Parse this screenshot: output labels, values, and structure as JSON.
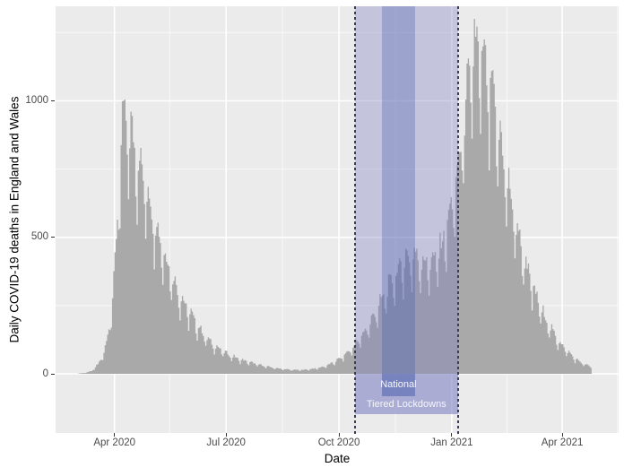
{
  "chart_data": {
    "type": "bar",
    "title": "",
    "xlabel": "Date",
    "ylabel": "Daily COVID-19 deaths in England and Wales",
    "bar_unit": "1 day",
    "legend": "none",
    "grid": "white major and minor gridlines on grey panel",
    "x_domain": [
      "2020-02-13",
      "2021-05-17"
    ],
    "ylim": [
      0,
      1346
    ],
    "x_ticks": [
      {
        "date": "2020-04-01",
        "label": "Apr 2020"
      },
      {
        "date": "2020-07-01",
        "label": "Jul 2020"
      },
      {
        "date": "2020-10-01",
        "label": "Oct 2020"
      },
      {
        "date": "2021-01-01",
        "label": "Jan 2021"
      },
      {
        "date": "2021-04-01",
        "label": "Apr 2021"
      }
    ],
    "x_minor_ticks": [
      "2020-05-16",
      "2020-08-16",
      "2020-11-16",
      "2021-02-15",
      "2021-05-16"
    ],
    "y_ticks": [
      {
        "value": 0,
        "label": "0"
      },
      {
        "value": 500,
        "label": "500"
      },
      {
        "value": 1000,
        "label": "1000"
      }
    ],
    "y_minor_ticks": [
      250,
      750,
      1250
    ],
    "series_anchors": [
      [
        "2020-03-02",
        1
      ],
      [
        "2020-03-08",
        4
      ],
      [
        "2020-03-13",
        10
      ],
      [
        "2020-03-18",
        33
      ],
      [
        "2020-03-23",
        75
      ],
      [
        "2020-03-27",
        160
      ],
      [
        "2020-03-31",
        320
      ],
      [
        "2020-04-04",
        640
      ],
      [
        "2020-04-08",
        930
      ],
      [
        "2020-04-11",
        880
      ],
      [
        "2020-04-15",
        840
      ],
      [
        "2020-04-21",
        750
      ],
      [
        "2020-04-28",
        640
      ],
      [
        "2020-05-05",
        520
      ],
      [
        "2020-05-12",
        420
      ],
      [
        "2020-05-19",
        330
      ],
      [
        "2020-05-26",
        260
      ],
      [
        "2020-06-02",
        210
      ],
      [
        "2020-06-09",
        160
      ],
      [
        "2020-06-16",
        120
      ],
      [
        "2020-06-23",
        95
      ],
      [
        "2020-06-30",
        75
      ],
      [
        "2020-07-07",
        60
      ],
      [
        "2020-07-14",
        48
      ],
      [
        "2020-07-21",
        40
      ],
      [
        "2020-07-28",
        32
      ],
      [
        "2020-08-04",
        25
      ],
      [
        "2020-08-11",
        20
      ],
      [
        "2020-08-18",
        16
      ],
      [
        "2020-08-25",
        14
      ],
      [
        "2020-09-01",
        14
      ],
      [
        "2020-09-08",
        17
      ],
      [
        "2020-09-15",
        22
      ],
      [
        "2020-09-22",
        32
      ],
      [
        "2020-09-29",
        48
      ],
      [
        "2020-10-06",
        70
      ],
      [
        "2020-10-13",
        100
      ],
      [
        "2020-10-20",
        140
      ],
      [
        "2020-10-27",
        190
      ],
      [
        "2020-11-03",
        250
      ],
      [
        "2020-11-10",
        310
      ],
      [
        "2020-11-17",
        360
      ],
      [
        "2020-11-24",
        410
      ],
      [
        "2020-12-01",
        420
      ],
      [
        "2020-12-08",
        400
      ],
      [
        "2020-12-15",
        395
      ],
      [
        "2020-12-22",
        440
      ],
      [
        "2020-12-29",
        550
      ],
      [
        "2021-01-05",
        700
      ],
      [
        "2021-01-09",
        850
      ],
      [
        "2021-01-13",
        1000
      ],
      [
        "2021-01-19",
        1180
      ],
      [
        "2021-01-23",
        1150
      ],
      [
        "2021-01-28",
        1080
      ],
      [
        "2021-02-02",
        1000
      ],
      [
        "2021-02-09",
        840
      ],
      [
        "2021-02-16",
        660
      ],
      [
        "2021-02-23",
        510
      ],
      [
        "2021-03-02",
        390
      ],
      [
        "2021-03-09",
        290
      ],
      [
        "2021-03-16",
        215
      ],
      [
        "2021-03-23",
        155
      ],
      [
        "2021-03-30",
        110
      ],
      [
        "2021-04-06",
        75
      ],
      [
        "2021-04-13",
        48
      ],
      [
        "2021-04-20",
        32
      ],
      [
        "2021-04-24",
        25
      ]
    ],
    "noise": {
      "weekly": [
        0.74,
        1.0,
        1.1,
        1.08,
        1.06,
        1.02,
        0.86
      ],
      "jitter_base": 0.93,
      "jitter_span": 0.14,
      "clamp": 1300
    },
    "annotations": {
      "bands": [
        {
          "id": "tiered",
          "label": "Tiered Lockdowns",
          "start": "2020-10-14",
          "end": "2021-01-06",
          "fill": "rgba(124,125,196,0.35)",
          "dashed_borders": true
        },
        {
          "id": "national",
          "label": "National",
          "start": "2020-11-05",
          "end": "2020-12-02",
          "fill": "rgba(62,90,170,0.30)",
          "dashed_borders": false
        }
      ]
    }
  },
  "colors": {
    "bar": "#a9a9a9",
    "panel_bg": "#ebebeb",
    "grid_major": "#ffffff",
    "grid_minor": "#ffffff",
    "tick_text": "#4a4a4a",
    "axis_title_text": "#000000",
    "dashed_line": "#3c3c55",
    "band_label_text": "#f6f6fb"
  }
}
